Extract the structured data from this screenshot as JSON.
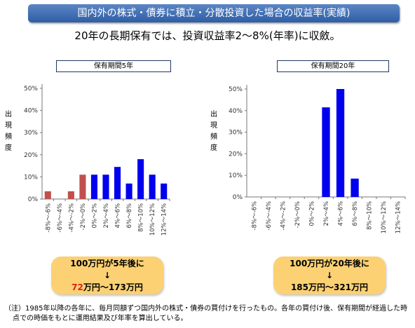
{
  "header": {
    "title": "国内外の株式・債券に積立・分散投資した場合の収益率(実績)",
    "subtitle": "20年の長期保有では、投資収益率2〜8%(年率)に収斂。"
  },
  "chart_data": [
    {
      "type": "bar",
      "title": "保有期間5年",
      "ylabel": "出現頻度",
      "categories": [
        "-8%〜-6%",
        "-6%〜-4%",
        "-4%〜-2%",
        "-2%〜0%",
        "0%〜2%",
        "2%〜4%",
        "4%〜6%",
        "6%〜8%",
        "8%〜10%",
        "10%〜12%",
        "12%〜14%"
      ],
      "values": [
        3.5,
        0,
        3.5,
        11,
        11,
        11,
        14.5,
        7,
        18,
        11,
        7
      ],
      "bar_colors": [
        "#c0504d",
        "#c0504d",
        "#c0504d",
        "#c0504d",
        "#0000ee",
        "#0000ee",
        "#0000ee",
        "#0000ee",
        "#0000ee",
        "#0000ee",
        "#0000ee"
      ],
      "yticks": [
        "0%",
        "10%",
        "20%",
        "30%",
        "40%",
        "50%"
      ],
      "ylim": [
        0,
        50
      ]
    },
    {
      "type": "bar",
      "title": "保有期間20年",
      "ylabel": "出現頻度",
      "categories": [
        "-8%〜-6%",
        "-6%〜-4%",
        "-4%〜-2%",
        "-2%〜0%",
        "0%〜2%",
        "2%〜4%",
        "4%〜6%",
        "6%〜8%",
        "8%〜10%",
        "10%〜12%",
        "12%〜14%"
      ],
      "values": [
        0,
        0,
        0,
        0,
        0,
        41.5,
        50,
        8.5,
        0,
        0,
        0
      ],
      "bar_colors": [
        "#0000ee",
        "#0000ee",
        "#0000ee",
        "#0000ee",
        "#0000ee",
        "#0000ee",
        "#0000ee",
        "#0000ee",
        "#0000ee",
        "#0000ee",
        "#0000ee"
      ],
      "yticks": [
        "0%",
        "10%",
        "20%",
        "30%",
        "40%",
        "50%"
      ],
      "ylim": [
        0,
        50
      ]
    }
  ],
  "callouts": {
    "left": {
      "line1": "100万円が5年後に",
      "arrow": "↓",
      "red_part": "72",
      "rest": "万円〜173万円"
    },
    "right": {
      "line1": "100万円が20年後に",
      "arrow": "↓",
      "line3": "185万円〜321万円"
    }
  },
  "note": {
    "line1": "（注）1985年以降の各年に、毎月同額ずつ国内外の株式・債券の買付けを行ったもの。各年の買付け後、保有期間が経過した時",
    "line2": "点での時価をもとに運用結果及び年率を算出している。"
  },
  "colors": {
    "negative_bar": "#c0504d",
    "positive_bar": "#0000ee",
    "callout_bg": "#fcd173"
  }
}
